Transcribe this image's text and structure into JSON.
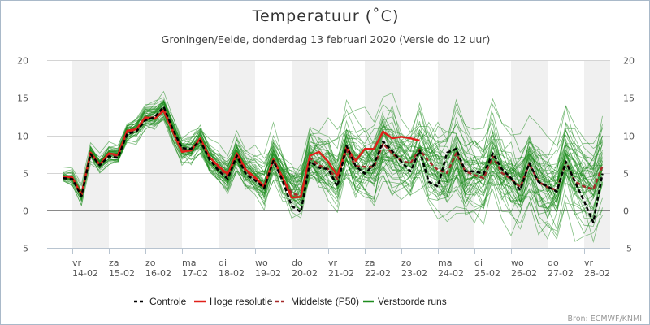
{
  "chart_data": {
    "type": "line",
    "title": "Temperatuur (˚C)",
    "subtitle": "Groningen/Eelde, donderdag 13 februari 2020 (Versie do 12 uur)",
    "ylabel": "",
    "xlabel": "",
    "ylim": [
      -5,
      20
    ],
    "yticks": [
      "-5",
      "0",
      "5",
      "10",
      "15",
      "20"
    ],
    "grid": true,
    "time_step_hours": 6,
    "first_point_hours_from_first_day": -6,
    "days": [
      {
        "dow": "vr",
        "date": "14-02",
        "shaded": true
      },
      {
        "dow": "za",
        "date": "15-02",
        "shaded": false
      },
      {
        "dow": "zo",
        "date": "16-02",
        "shaded": true
      },
      {
        "dow": "ma",
        "date": "17-02",
        "shaded": false
      },
      {
        "dow": "di",
        "date": "18-02",
        "shaded": true
      },
      {
        "dow": "wo",
        "date": "19-02",
        "shaded": false
      },
      {
        "dow": "do",
        "date": "20-02",
        "shaded": true
      },
      {
        "dow": "vr",
        "date": "21-02",
        "shaded": false
      },
      {
        "dow": "za",
        "date": "22-02",
        "shaded": true
      },
      {
        "dow": "zo",
        "date": "23-02",
        "shaded": false
      },
      {
        "dow": "ma",
        "date": "24-02",
        "shaded": true
      },
      {
        "dow": "di",
        "date": "25-02",
        "shaded": false
      },
      {
        "dow": "wo",
        "date": "26-02",
        "shaded": true
      },
      {
        "dow": "do",
        "date": "27-02",
        "shaded": false
      },
      {
        "dow": "vr",
        "date": "28-02",
        "shaded": true
      }
    ],
    "series": [
      {
        "name": "Controle",
        "color": "#000000",
        "style": "dashed",
        "values": [
          4.3,
          4.2,
          1.9,
          7.5,
          6.0,
          7.2,
          7.0,
          10.2,
          10.5,
          12.0,
          12.4,
          13.8,
          10.8,
          8.3,
          8.2,
          9.3,
          6.8,
          5.3,
          4.2,
          7.3,
          4.8,
          4.0,
          3.0,
          6.6,
          4.0,
          0.6,
          -0.2,
          6.5,
          5.7,
          5.5,
          3.2,
          8.6,
          5.9,
          4.9,
          6.1,
          9.2,
          7.9,
          6.5,
          5.2,
          8.0,
          3.8,
          3.2,
          7.7,
          8.2,
          5.2,
          5.2,
          4.9,
          7.6,
          5.5,
          4.3,
          2.7,
          6.3,
          3.8,
          3.2,
          2.5,
          6.5,
          3.8,
          1.2,
          -1.6,
          4.9
        ]
      },
      {
        "name": "Hoge resolutie",
        "color": "#e0201a",
        "style": "solid",
        "values": [
          4.5,
          4.4,
          2.1,
          7.7,
          6.1,
          7.6,
          7.4,
          10.6,
          10.8,
          12.4,
          12.2,
          13.3,
          10.5,
          7.8,
          8.0,
          9.6,
          7.1,
          5.9,
          4.8,
          7.6,
          5.4,
          4.4,
          3.2,
          6.8,
          4.4,
          1.7,
          1.8,
          7.3,
          7.8,
          6.5,
          4.6,
          8.4,
          6.6,
          8.2,
          8.2,
          10.5,
          9.6,
          9.8,
          9.6,
          9.3
        ]
      },
      {
        "name": "Middelste (P50)",
        "color": "#a52a2a",
        "style": "dashed",
        "values": [
          4.5,
          4.3,
          2.0,
          7.6,
          6.1,
          7.4,
          7.3,
          10.4,
          10.7,
          12.3,
          12.4,
          13.5,
          10.6,
          8.0,
          8.0,
          9.4,
          7.0,
          5.7,
          4.6,
          7.4,
          5.2,
          4.3,
          3.1,
          6.7,
          4.3,
          2.3,
          1.9,
          7.0,
          6.0,
          5.5,
          4.2,
          8.0,
          5.9,
          5.8,
          5.8,
          8.9,
          7.6,
          6.6,
          6.3,
          8.1,
          6.5,
          5.4,
          5.0,
          7.6,
          5.2,
          4.7,
          4.3,
          7.2,
          5.0,
          4.2,
          3.1,
          6.2,
          3.8,
          3.1,
          2.7,
          6.5,
          3.8,
          3.2,
          2.8,
          5.9
        ]
      },
      {
        "name": "Verstoorde runs",
        "color": "#1e8c1e",
        "style": "solid",
        "members": 50,
        "spread_around_p50": [
          0.5,
          0.5,
          0.6,
          0.6,
          0.6,
          0.7,
          0.7,
          0.8,
          0.8,
          0.8,
          0.9,
          0.9,
          1.0,
          1.0,
          1.1,
          1.1,
          1.2,
          1.2,
          1.3,
          1.4,
          1.5,
          1.6,
          1.7,
          1.8,
          1.9,
          2.0,
          2.1,
          2.2,
          2.3,
          2.4,
          2.5,
          2.5,
          2.6,
          2.6,
          2.7,
          2.7,
          2.8,
          2.8,
          2.8,
          2.9,
          2.9,
          2.9,
          3.0,
          3.0,
          3.0,
          3.0,
          3.0,
          3.0,
          3.0,
          3.0,
          3.0,
          3.0,
          3.0,
          3.0,
          3.0,
          3.0,
          3.0,
          3.0,
          3.0,
          3.0
        ]
      }
    ],
    "legend_position": "bottom"
  },
  "source": "Bron: ECMWF/KNMI"
}
